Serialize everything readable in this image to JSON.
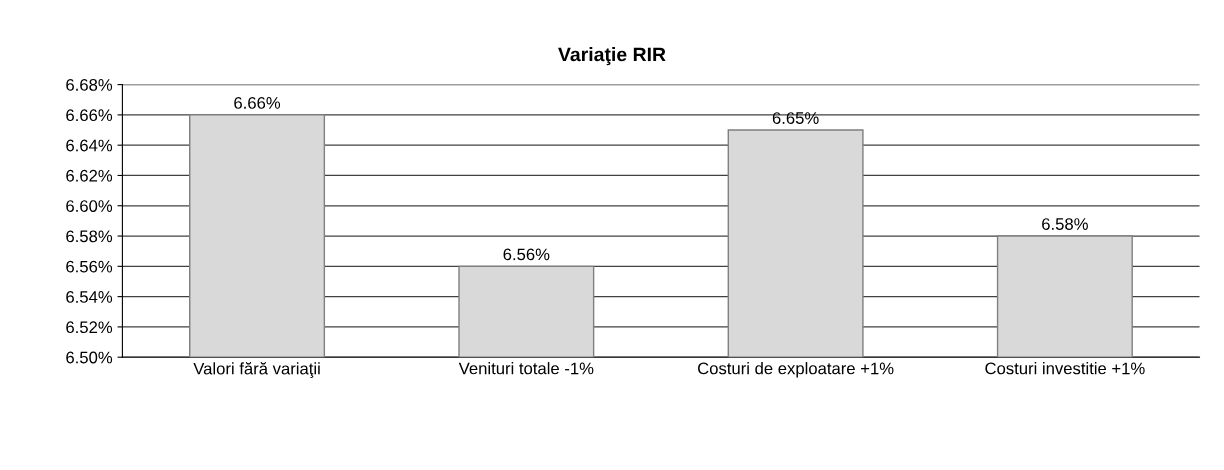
{
  "chart_data": {
    "type": "bar",
    "title": "Variaţie RIR",
    "categories": [
      "Valori fără variaţii",
      "Venituri totale -1%",
      "Costuri de exploatare +1%",
      "Costuri investitie +1%"
    ],
    "values": [
      6.66,
      6.56,
      6.65,
      6.58
    ],
    "color": "#d9d9d9",
    "ylim": [
      6.5,
      6.68
    ],
    "yticks": [
      {
        "value": 6.5,
        "label": "6.50%"
      },
      {
        "value": 6.52,
        "label": "6.52%"
      },
      {
        "value": 6.54,
        "label": "6.54%"
      },
      {
        "value": 6.56,
        "label": "6.56%"
      },
      {
        "value": 6.58,
        "label": "6.58%"
      },
      {
        "value": 6.6,
        "label": "6.60%"
      },
      {
        "value": 6.62,
        "label": "6.62%"
      },
      {
        "value": 6.64,
        "label": "6.64%"
      },
      {
        "value": 6.66,
        "label": "6.66%"
      },
      {
        "value": 6.68,
        "label": "6.68%"
      }
    ],
    "value_labels": [
      "6.66%",
      "6.56%",
      "6.65%",
      "6.58%"
    ],
    "grid": "y",
    "legend": false
  }
}
